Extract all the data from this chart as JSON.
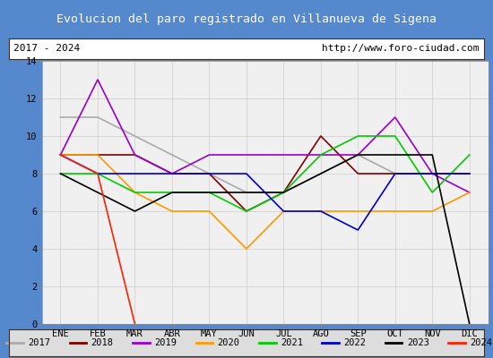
{
  "title": "Evolucion del paro registrado en Villanueva de Sigena",
  "subtitle_left": "2017 - 2024",
  "subtitle_right": "http://www.foro-ciudad.com",
  "months": [
    "ENE",
    "FEB",
    "MAR",
    "ABR",
    "MAY",
    "JUN",
    "JUL",
    "AGO",
    "SEP",
    "OCT",
    "NOV",
    "DIC"
  ],
  "ylim": [
    0,
    14
  ],
  "yticks": [
    0,
    2,
    4,
    6,
    8,
    10,
    12,
    14
  ],
  "series": {
    "2017": {
      "color": "#aaaaaa",
      "values": [
        11,
        11,
        10,
        9,
        8,
        7,
        7,
        8,
        9,
        8,
        8,
        8
      ]
    },
    "2018": {
      "color": "#800000",
      "values": [
        9,
        9,
        9,
        8,
        8,
        6,
        7,
        10,
        8,
        8,
        8,
        8
      ]
    },
    "2019": {
      "color": "#9900cc",
      "values": [
        9,
        13,
        9,
        8,
        9,
        9,
        9,
        9,
        9,
        11,
        8,
        7
      ]
    },
    "2020": {
      "color": "#ff9900",
      "values": [
        9,
        9,
        7,
        6,
        6,
        4,
        6,
        6,
        6,
        6,
        6,
        7
      ]
    },
    "2021": {
      "color": "#00cc00",
      "values": [
        8,
        8,
        7,
        7,
        7,
        6,
        7,
        9,
        10,
        10,
        7,
        9
      ]
    },
    "2022": {
      "color": "#0000cc",
      "values": [
        9,
        8,
        8,
        8,
        8,
        8,
        6,
        6,
        5,
        8,
        8,
        8
      ]
    },
    "2023": {
      "color": "#000000",
      "values": [
        8,
        7,
        6,
        7,
        7,
        7,
        7,
        8,
        9,
        9,
        9,
        0
      ]
    },
    "2024": {
      "color": "#ff2200",
      "values": [
        9,
        8,
        0,
        null,
        null,
        null,
        null,
        null,
        null,
        null,
        null,
        null
      ]
    }
  },
  "background_color": "#e8e8e8",
  "plot_bg_color": "#f0f0f0",
  "title_bg_color": "#5588dd",
  "title_color": "#ffffff",
  "subtitle_bg_color": "#ffffff",
  "subtitle_color": "#000000",
  "grid_color": "#cccccc",
  "legend_bg_color": "#dddddd",
  "outer_bg_color": "#5588cc",
  "border_color": "#5588cc"
}
